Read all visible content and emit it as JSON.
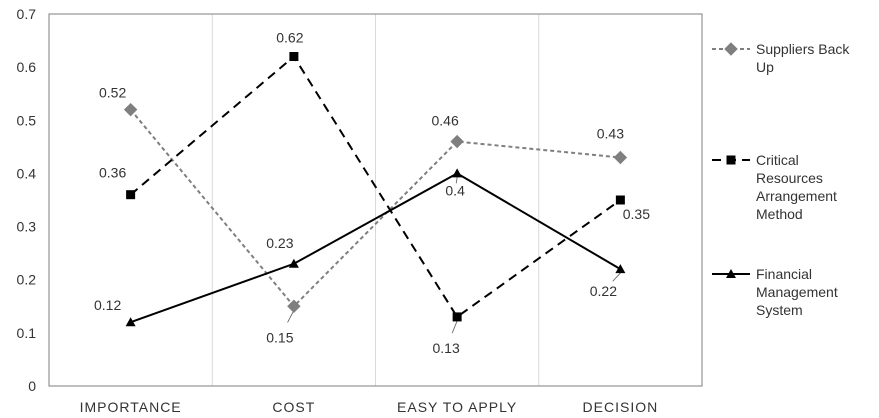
{
  "chart_data": {
    "type": "line",
    "categories": [
      "IMPORTANCE",
      "COST",
      "EASY TO APPLY",
      "DECISION"
    ],
    "ylim": [
      0,
      0.7
    ],
    "yticks": [
      "0",
      "0.1",
      "0.2",
      "0.3",
      "0.4",
      "0.5",
      "0.6",
      "0.7"
    ],
    "grid": "vertical separators between categories",
    "legend_position": "right",
    "series": [
      {
        "name_lines": [
          "Suppliers Back",
          "Up"
        ],
        "values": [
          0.52,
          0.15,
          0.46,
          0.43
        ],
        "labels": [
          "0.52",
          "0.15",
          "0.46",
          "0.43"
        ],
        "color": "#7f7f7f",
        "line_style": "short-dash",
        "marker": "diamond"
      },
      {
        "name_lines": [
          "Critical",
          "Resources",
          "Arrangement",
          "Method"
        ],
        "values": [
          0.36,
          0.62,
          0.13,
          0.35
        ],
        "labels": [
          "0.36",
          "0.62",
          "0.13",
          "0.35"
        ],
        "color": "#000000",
        "line_style": "long-dash",
        "marker": "square"
      },
      {
        "name_lines": [
          "Financial",
          "Management",
          "System"
        ],
        "values": [
          0.12,
          0.23,
          0.4,
          0.22
        ],
        "labels": [
          "0.12",
          "0.23",
          "0.4",
          "0.22"
        ],
        "color": "#000000",
        "line_style": "solid",
        "marker": "triangle"
      }
    ]
  }
}
